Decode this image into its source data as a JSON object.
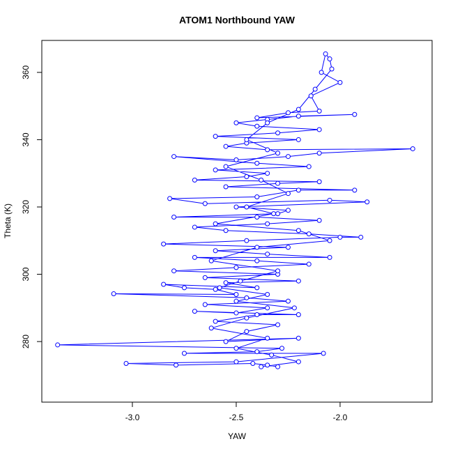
{
  "chart_data": {
    "type": "line",
    "title": "ATOM1 Northbound YAW",
    "x_label": "YAW",
    "y_label": "Theta (K)",
    "color": "#0000ff",
    "marker": "circle",
    "xlim": [
      -3.436,
      -1.557
    ],
    "ylim": [
      262.0,
      369.5
    ],
    "xticks": [
      {
        "value": -3.0,
        "label": "-3.0"
      },
      {
        "value": -2.5,
        "label": "-2.5"
      },
      {
        "value": -2.0,
        "label": "-2.0"
      }
    ],
    "yticks": [
      280,
      300,
      320,
      340,
      360
    ],
    "x": [
      -2.3,
      -2.35,
      -2.42,
      -2.79,
      -3.03,
      -2.5,
      -2.08,
      -2.75,
      -2.4,
      -2.28,
      -3.36,
      -2.2,
      -2.55,
      -2.45,
      -2.3,
      -2.6,
      -2.4,
      -2.2,
      -2.7,
      -2.5,
      -2.35,
      -2.65,
      -2.25,
      -2.45,
      -3.09,
      -2.5,
      -2.6,
      -2.75,
      -2.85,
      -2.4,
      -2.55,
      -2.2,
      -2.65,
      -2.3,
      -2.8,
      -2.5,
      -2.15,
      -2.4,
      -2.7,
      -2.05,
      -2.35,
      -2.6,
      -2.25,
      -2.85,
      -2.45,
      -2.0,
      -1.9,
      -2.15,
      -2.55,
      -2.7,
      -2.35,
      -2.1,
      -2.4,
      -2.8,
      -2.3,
      -2.25,
      -2.5,
      -1.87,
      -2.05,
      -2.65,
      -2.82,
      -2.4,
      -2.2,
      -1.93,
      -2.55,
      -2.3,
      -2.1,
      -2.7,
      -2.45,
      -2.35,
      -2.6,
      -2.15,
      -2.4,
      -2.8,
      -2.5,
      -2.25,
      -2.1,
      -1.65,
      -2.35,
      -2.55,
      -2.45,
      -2.2,
      -2.6,
      -2.3,
      -2.1,
      -2.4,
      -2.5,
      -2.35,
      -2.2,
      -1.93,
      -2.4,
      -2.25,
      -2.1,
      -2.14,
      -2.0,
      -2.09,
      -2.07,
      -2.05,
      -2.04,
      -2.12,
      -2.2,
      -2.35,
      -2.45,
      -2.3,
      -2.55,
      -2.38,
      -2.25,
      -2.45,
      -2.32,
      -2.6,
      -2.2,
      -2.05,
      -2.4,
      -2.62,
      -2.3,
      -2.48,
      -2.58,
      -2.35,
      -2.5,
      -2.22,
      -2.45,
      -2.62,
      -2.35,
      -2.5,
      -2.33,
      -2.2,
      -2.38
    ],
    "y": [
      272.5,
      273,
      273.5,
      273,
      273.5,
      274,
      276.5,
      276.5,
      277,
      278,
      279,
      281,
      280,
      283,
      285,
      286,
      288,
      288,
      289,
      288.5,
      290,
      291,
      292,
      293,
      294.2,
      294,
      295.5,
      296,
      297,
      296,
      297.5,
      298,
      299,
      300,
      301,
      302,
      303,
      304,
      305,
      305,
      306,
      307,
      308,
      309,
      310,
      311,
      311,
      312,
      313,
      314,
      315,
      316,
      317,
      317,
      318,
      319,
      320,
      321.5,
      322,
      321,
      322.5,
      323,
      325,
      325,
      326,
      327,
      327.5,
      328,
      329,
      330,
      331,
      332,
      333,
      335,
      334,
      335,
      336,
      337.3,
      337,
      338,
      339,
      340,
      341,
      342,
      343,
      344,
      345,
      346,
      347,
      347.5,
      346.5,
      348,
      348.5,
      353,
      357,
      360,
      365.5,
      364,
      361,
      355,
      349,
      345,
      340,
      336,
      332,
      328,
      324,
      320,
      318,
      315,
      313,
      310,
      308,
      304,
      301,
      298,
      296,
      294,
      292,
      290,
      287,
      284,
      281,
      278,
      276,
      274,
      272.5
    ]
  }
}
